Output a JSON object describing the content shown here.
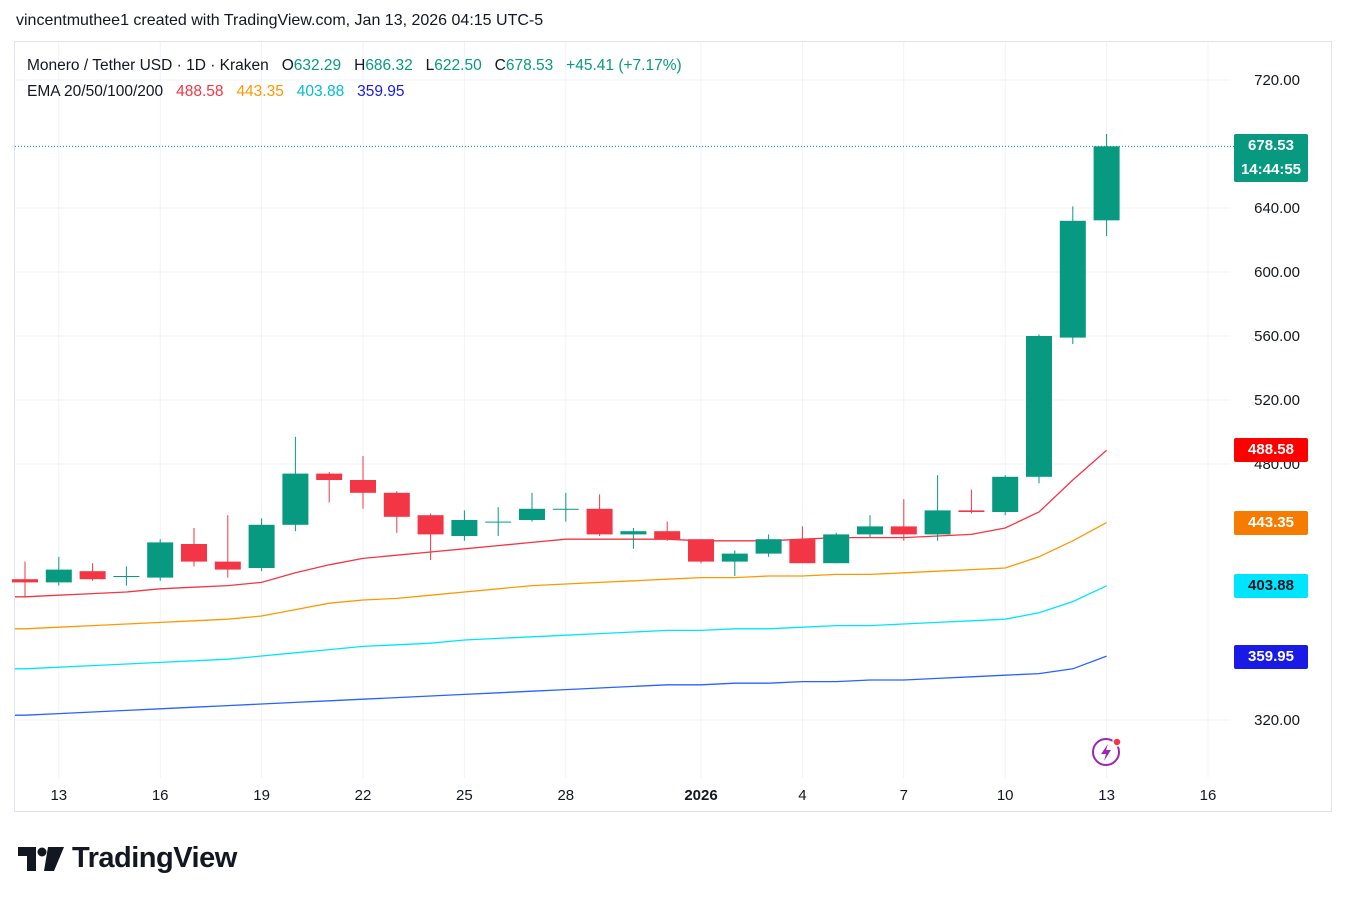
{
  "header": {
    "credit": "vincentmuthee1 created with TradingView.com, Jan 13, 2026 04:15 UTC-5"
  },
  "legend": {
    "symbol": "Monero / Tether USD · 1D · Kraken",
    "open_label": "O",
    "open": "632.29",
    "high_label": "H",
    "high": "686.32",
    "low_label": "L",
    "low": "622.50",
    "close_label": "C",
    "close": "678.53",
    "change": "+45.41 (+7.17%)",
    "ema_label": "EMA 20/50/100/200",
    "ema20": "488.58",
    "ema50": "443.35",
    "ema100": "403.88",
    "ema200": "359.95"
  },
  "last_price": {
    "price": "678.53",
    "countdown": "14:44:55"
  },
  "branding": {
    "name": "TradingView"
  },
  "colors": {
    "up": "#089981",
    "down": "#f23645",
    "ema20": "#f23645",
    "ema50": "#ff9800",
    "ema100": "#00e5ff",
    "ema200": "#2962ff",
    "ema20_tag": "#ff0000",
    "ema50_tag": "#f57c00",
    "ema100_tag": "#00e5ff",
    "ema200_tag": "#1a1ae6"
  },
  "chart_data": {
    "type": "candlestick",
    "title": "Monero / Tether USD · 1D · Kraken",
    "ylim": [
      290,
      735
    ],
    "y_ticks": [
      "720.00",
      "640.00",
      "600.00",
      "560.00",
      "520.00",
      "480.00",
      "320.00"
    ],
    "x_ticks": [
      {
        "label": "13",
        "i": 1
      },
      {
        "label": "16",
        "i": 4
      },
      {
        "label": "19",
        "i": 7
      },
      {
        "label": "22",
        "i": 10
      },
      {
        "label": "25",
        "i": 13
      },
      {
        "label": "28",
        "i": 16
      },
      {
        "label": "2026",
        "i": 20
      },
      {
        "label": "4",
        "i": 23
      },
      {
        "label": "7",
        "i": 26
      },
      {
        "label": "10",
        "i": 29
      },
      {
        "label": "13",
        "i": 32
      },
      {
        "label": "16",
        "i": 35
      }
    ],
    "candles": [
      {
        "date": "2025-12-12",
        "o": 408,
        "h": 419,
        "l": 397,
        "c": 406
      },
      {
        "date": "2025-12-13",
        "o": 406,
        "h": 422,
        "l": 404,
        "c": 414
      },
      {
        "date": "2025-12-14",
        "o": 413,
        "h": 418,
        "l": 407,
        "c": 408
      },
      {
        "date": "2025-12-15",
        "o": 410,
        "h": 416,
        "l": 404,
        "c": 410
      },
      {
        "date": "2025-12-16",
        "o": 409,
        "h": 433,
        "l": 407,
        "c": 431
      },
      {
        "date": "2025-12-17",
        "o": 430,
        "h": 440,
        "l": 416,
        "c": 419
      },
      {
        "date": "2025-12-18",
        "o": 419,
        "h": 448,
        "l": 409,
        "c": 414
      },
      {
        "date": "2025-12-19",
        "o": 415,
        "h": 446,
        "l": 413,
        "c": 442
      },
      {
        "date": "2025-12-20",
        "o": 442,
        "h": 497,
        "l": 438,
        "c": 474
      },
      {
        "date": "2025-12-21",
        "o": 474,
        "h": 475,
        "l": 456,
        "c": 470
      },
      {
        "date": "2025-12-22",
        "o": 470,
        "h": 485,
        "l": 452,
        "c": 462
      },
      {
        "date": "2025-12-23",
        "o": 462,
        "h": 463,
        "l": 437,
        "c": 447
      },
      {
        "date": "2025-12-24",
        "o": 448,
        "h": 449,
        "l": 420,
        "c": 436
      },
      {
        "date": "2025-12-25",
        "o": 435,
        "h": 451,
        "l": 432,
        "c": 445
      },
      {
        "date": "2025-12-26",
        "o": 444,
        "h": 453,
        "l": 435,
        "c": 444
      },
      {
        "date": "2025-12-27",
        "o": 445,
        "h": 462,
        "l": 444,
        "c": 452
      },
      {
        "date": "2025-12-28",
        "o": 452,
        "h": 462,
        "l": 444,
        "c": 452
      },
      {
        "date": "2025-12-29",
        "o": 452,
        "h": 461,
        "l": 435,
        "c": 436
      },
      {
        "date": "2025-12-30",
        "o": 436,
        "h": 440,
        "l": 427,
        "c": 438
      },
      {
        "date": "2025-12-31",
        "o": 438,
        "h": 444,
        "l": 432,
        "c": 433
      },
      {
        "date": "2026-01-01",
        "o": 433,
        "h": 433,
        "l": 418,
        "c": 419
      },
      {
        "date": "2026-01-02",
        "o": 419,
        "h": 426,
        "l": 410,
        "c": 424
      },
      {
        "date": "2026-01-03",
        "o": 424,
        "h": 436,
        "l": 422,
        "c": 433
      },
      {
        "date": "2026-01-04",
        "o": 433,
        "h": 441,
        "l": 418,
        "c": 418
      },
      {
        "date": "2026-01-05",
        "o": 418,
        "h": 437,
        "l": 418,
        "c": 436
      },
      {
        "date": "2026-01-06",
        "o": 436,
        "h": 448,
        "l": 434,
        "c": 441
      },
      {
        "date": "2026-01-07",
        "o": 441,
        "h": 458,
        "l": 432,
        "c": 436
      },
      {
        "date": "2026-01-08",
        "o": 436,
        "h": 473,
        "l": 432,
        "c": 451
      },
      {
        "date": "2026-01-09",
        "o": 451,
        "h": 464,
        "l": 449,
        "c": 450
      },
      {
        "date": "2026-01-10",
        "o": 450,
        "h": 473,
        "l": 448,
        "c": 472
      },
      {
        "date": "2026-01-11",
        "o": 472,
        "h": 561,
        "l": 468,
        "c": 560
      },
      {
        "date": "2026-01-12",
        "o": 559,
        "h": 641,
        "l": 555,
        "c": 632
      },
      {
        "date": "2026-01-13",
        "o": 632.29,
        "h": 686.32,
        "l": 622.5,
        "c": 678.53
      }
    ],
    "series": [
      {
        "name": "EMA 20",
        "values": [
          397,
          398,
          399,
          400,
          402,
          403,
          404,
          406,
          412,
          417,
          421,
          423,
          425,
          427,
          429,
          431,
          433,
          433,
          433,
          433,
          432,
          432,
          432,
          433,
          434,
          434,
          434,
          435,
          436,
          440,
          450,
          470,
          488.58
        ]
      },
      {
        "name": "EMA 50",
        "values": [
          377,
          378,
          379,
          380,
          381,
          382,
          383,
          385,
          389,
          393,
          395,
          396,
          398,
          400,
          402,
          404,
          405,
          406,
          407,
          408,
          409,
          409,
          410,
          410,
          411,
          411,
          412,
          413,
          414,
          415,
          422,
          432,
          443.35
        ]
      },
      {
        "name": "EMA 100",
        "values": [
          352,
          353,
          354,
          355,
          356,
          357,
          358,
          360,
          362,
          364,
          366,
          367,
          368,
          370,
          371,
          372,
          373,
          374,
          375,
          376,
          376,
          377,
          377,
          378,
          379,
          379,
          380,
          381,
          382,
          383,
          387,
          394,
          403.88
        ]
      },
      {
        "name": "EMA 200",
        "values": [
          323,
          324,
          325,
          326,
          327,
          328,
          329,
          330,
          331,
          332,
          333,
          334,
          335,
          336,
          337,
          338,
          339,
          340,
          341,
          342,
          342,
          343,
          343,
          344,
          344,
          345,
          345,
          346,
          347,
          348,
          349,
          352,
          359.95
        ]
      }
    ]
  }
}
